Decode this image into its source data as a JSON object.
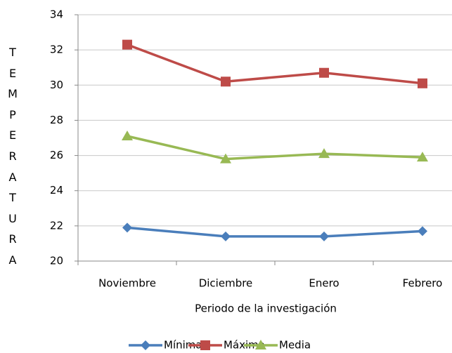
{
  "chart_data": {
    "type": "line",
    "y_label": "TEMPERATURA",
    "x_label": "Periodo de la investigación",
    "categories": [
      "Noviembre",
      "Diciembre",
      "Enero",
      "Febrero"
    ],
    "series": [
      {
        "name": "Mínima",
        "color": "#4a7ebb",
        "marker": "diamond",
        "values": [
          21.9,
          21.4,
          21.4,
          21.7
        ]
      },
      {
        "name": "Máxima",
        "color": "#be4b48",
        "marker": "square",
        "values": [
          32.3,
          30.2,
          30.7,
          30.1
        ]
      },
      {
        "name": "Media",
        "color": "#98b954",
        "marker": "triangle",
        "values": [
          27.1,
          25.8,
          26.1,
          25.9
        ]
      }
    ],
    "ylim": [
      20,
      34
    ],
    "yticks": [
      20,
      22,
      24,
      26,
      28,
      30,
      32,
      34
    ],
    "grid": true
  }
}
